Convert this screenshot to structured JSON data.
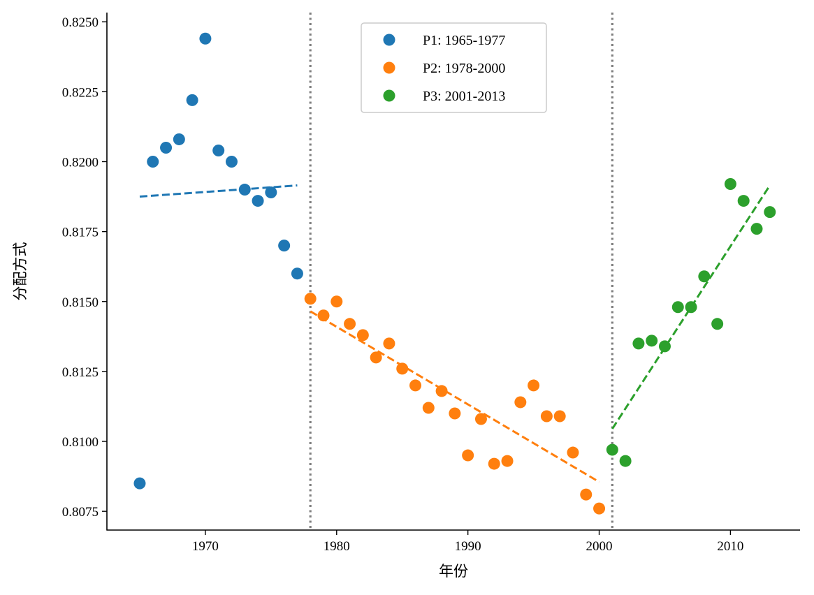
{
  "chart_data": {
    "type": "scatter",
    "title": "",
    "xlabel": "年份",
    "ylabel": "分配方式",
    "xlim": [
      1962.5,
      2015.3
    ],
    "ylim": [
      0.80683,
      0.82533
    ],
    "x_ticks": [
      1970,
      1980,
      1990,
      2000,
      2010
    ],
    "y_ticks": [
      0.8075,
      0.81,
      0.8125,
      0.815,
      0.8175,
      0.82,
      0.8225,
      0.825
    ],
    "grid": false,
    "legend_position": "top-center",
    "breakpoints": [
      1978,
      2001
    ],
    "breakpoint_style": "dotted",
    "breakpoint_color": "#808080",
    "series": [
      {
        "name": "P1: 1965-1977",
        "color": "#1f77b4",
        "x": [
          1965,
          1966,
          1967,
          1968,
          1969,
          1970,
          1971,
          1972,
          1973,
          1974,
          1975,
          1976,
          1977
        ],
        "y": [
          0.8085,
          0.82,
          0.8205,
          0.8208,
          0.8222,
          0.8244,
          0.8204,
          0.82,
          0.819,
          0.8186,
          0.8189,
          0.817,
          0.816
        ],
        "trend": {
          "x": [
            1965,
            1977
          ],
          "y": [
            0.81875,
            0.81915
          ]
        }
      },
      {
        "name": "P2: 1978-2000",
        "color": "#ff7f0e",
        "x": [
          1978,
          1979,
          1980,
          1981,
          1982,
          1983,
          1984,
          1985,
          1986,
          1987,
          1988,
          1989,
          1990,
          1991,
          1992,
          1993,
          1994,
          1995,
          1996,
          1997,
          1998,
          1999,
          2000
        ],
        "y": [
          0.8151,
          0.8145,
          0.815,
          0.8142,
          0.8138,
          0.813,
          0.8135,
          0.8126,
          0.812,
          0.8112,
          0.8118,
          0.811,
          0.8095,
          0.8108,
          0.8092,
          0.8093,
          0.8114,
          0.812,
          0.8109,
          0.8109,
          0.8096,
          0.8081,
          0.8076
        ],
        "trend": {
          "x": [
            1978,
            2000
          ],
          "y": [
            0.81465,
            0.80855
          ]
        }
      },
      {
        "name": "P3: 2001-2013",
        "color": "#2ca02c",
        "x": [
          2001,
          2002,
          2003,
          2004,
          2005,
          2006,
          2007,
          2008,
          2009,
          2010,
          2011,
          2012,
          2013
        ],
        "y": [
          0.8097,
          0.8093,
          0.8135,
          0.8136,
          0.8134,
          0.8148,
          0.8148,
          0.8159,
          0.8142,
          0.8192,
          0.8186,
          0.8176,
          0.8182
        ],
        "trend": {
          "x": [
            2001,
            2013
          ],
          "y": [
            0.81045,
            0.81915
          ]
        }
      }
    ]
  }
}
